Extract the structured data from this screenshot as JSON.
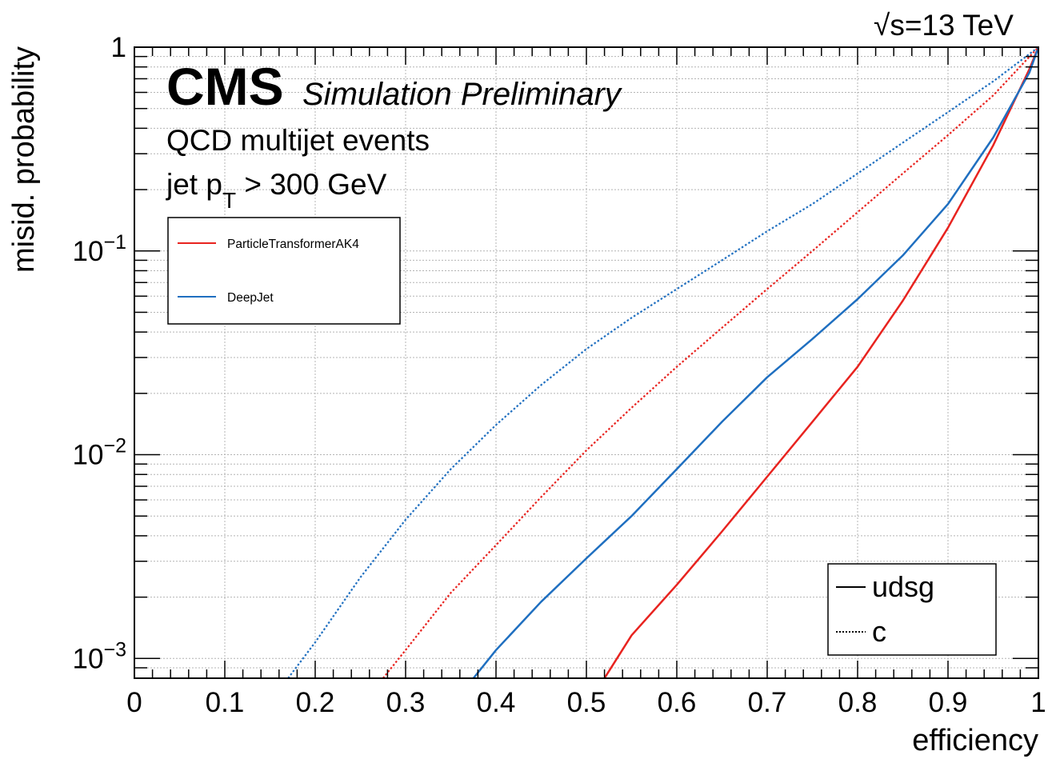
{
  "header": {
    "energy_sqrt": "√",
    "energy_rest": "s=13 TeV",
    "experiment": "CMS",
    "status": "Simulation Preliminary",
    "sample_line1": "QCD multijet events",
    "sample_line2_pre": "jet p",
    "sample_line2_sub": "T",
    "sample_line2_post": " > 300 GeV"
  },
  "legend_algos": [
    {
      "label": "ParticleTransformerAK4",
      "color": "#e8231f"
    },
    {
      "label": "DeepJet",
      "color": "#1f6fc0"
    }
  ],
  "legend_flavours": [
    {
      "label": "udsg",
      "style": "solid"
    },
    {
      "label": "c",
      "style": "dotted"
    }
  ],
  "colors": {
    "particle_transformer": "#e8231f",
    "deepjet": "#1f6fc0",
    "frame": "#000000",
    "grid": "#b4b4b4"
  },
  "chart_data": {
    "type": "line",
    "xlabel": "efficiency",
    "ylabel": "misid. probability",
    "xlim": [
      0,
      1
    ],
    "ylim": [
      0.0008,
      1
    ],
    "yscale": "log",
    "grid": true,
    "legend_placement": [
      "top-left",
      "bottom-right"
    ],
    "x_ticks": [
      "0",
      "0.1",
      "0.2",
      "0.3",
      "0.4",
      "0.5",
      "0.6",
      "0.7",
      "0.8",
      "0.9",
      "1"
    ],
    "y_ticks": [
      {
        "value": 0.001,
        "base": "10",
        "exp": "−3"
      },
      {
        "value": 0.01,
        "base": "10",
        "exp": "−2"
      },
      {
        "value": 0.1,
        "base": "10",
        "exp": "−1"
      },
      {
        "value": 1,
        "base": "1",
        "exp": ""
      }
    ],
    "series": [
      {
        "name": "ParticleTransformerAK4",
        "flavour": "udsg",
        "color": "#e8231f",
        "dash": "solid",
        "x": [
          0.52,
          0.55,
          0.6,
          0.65,
          0.7,
          0.75,
          0.8,
          0.85,
          0.9,
          0.95,
          0.99,
          1.0
        ],
        "y": [
          0.0008,
          0.0013,
          0.0023,
          0.0042,
          0.0078,
          0.0145,
          0.027,
          0.057,
          0.13,
          0.33,
          0.78,
          1.0
        ]
      },
      {
        "name": "DeepJet",
        "flavour": "udsg",
        "color": "#1f6fc0",
        "dash": "solid",
        "x": [
          0.375,
          0.4,
          0.45,
          0.5,
          0.55,
          0.6,
          0.65,
          0.7,
          0.75,
          0.8,
          0.85,
          0.9,
          0.95,
          0.99,
          1.0
        ],
        "y": [
          0.0008,
          0.0011,
          0.0019,
          0.0031,
          0.005,
          0.0085,
          0.0145,
          0.024,
          0.037,
          0.058,
          0.095,
          0.17,
          0.36,
          0.75,
          1.0
        ]
      },
      {
        "name": "ParticleTransformerAK4",
        "flavour": "c",
        "color": "#e8231f",
        "dash": "dotted",
        "x": [
          0.275,
          0.3,
          0.35,
          0.4,
          0.45,
          0.5,
          0.55,
          0.6,
          0.65,
          0.7,
          0.75,
          0.8,
          0.85,
          0.9,
          0.95,
          1.0
        ],
        "y": [
          0.0008,
          0.0011,
          0.0021,
          0.0036,
          0.0062,
          0.0105,
          0.017,
          0.027,
          0.042,
          0.065,
          0.1,
          0.155,
          0.24,
          0.37,
          0.58,
          1.0
        ]
      },
      {
        "name": "DeepJet",
        "flavour": "c",
        "color": "#1f6fc0",
        "dash": "dotted",
        "x": [
          0.17,
          0.2,
          0.25,
          0.3,
          0.35,
          0.4,
          0.45,
          0.5,
          0.55,
          0.6,
          0.65,
          0.7,
          0.75,
          0.8,
          0.85,
          0.9,
          0.95,
          1.0
        ],
        "y": [
          0.0008,
          0.0012,
          0.0025,
          0.0048,
          0.0085,
          0.014,
          0.022,
          0.033,
          0.047,
          0.065,
          0.09,
          0.125,
          0.17,
          0.24,
          0.34,
          0.48,
          0.68,
          1.0
        ]
      }
    ]
  }
}
